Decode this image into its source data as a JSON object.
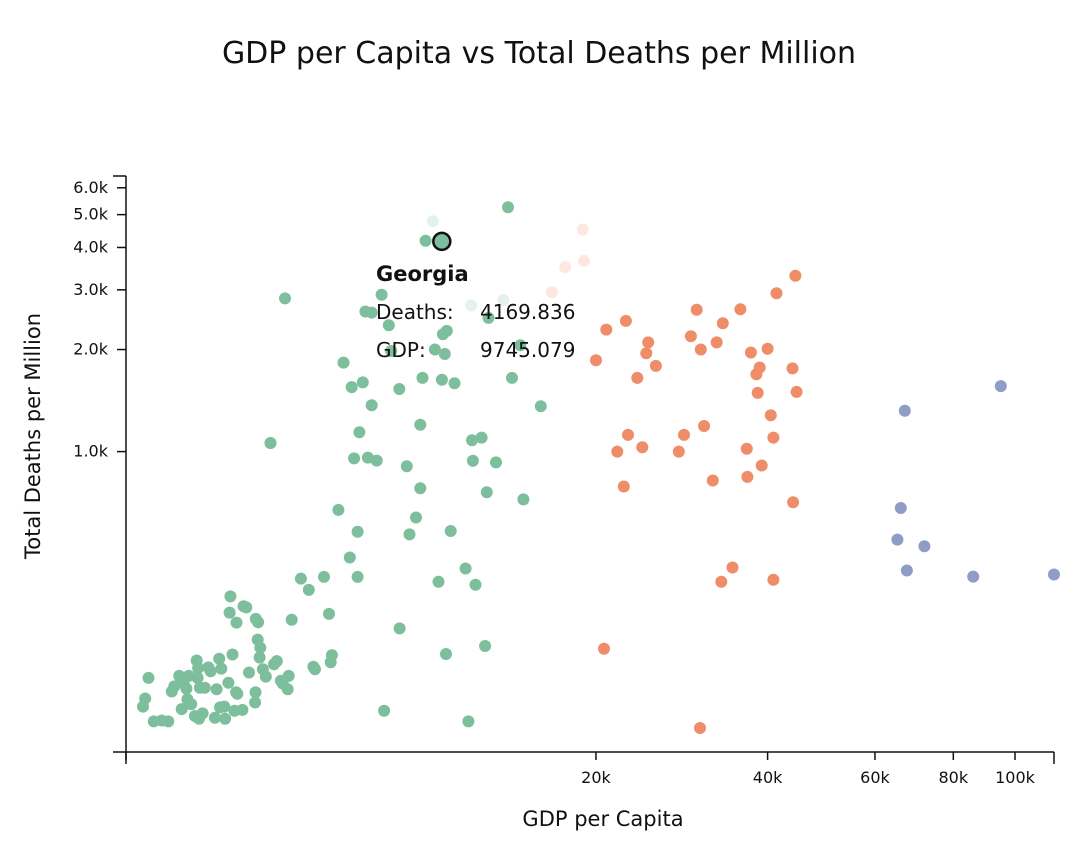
{
  "chart_data": {
    "type": "scatter",
    "title": "GDP per Capita vs Total Deaths per Million",
    "xlabel": "GDP per Capita",
    "ylabel": "Total Deaths per Million",
    "x_scale": "symlog",
    "y_scale": "log",
    "xlim": [
      0,
      115000
    ],
    "ylim": [
      130,
      6500
    ],
    "x_ticks": [
      0,
      20000,
      40000,
      60000,
      80000,
      100000
    ],
    "x_tick_labels": [
      "",
      "20k",
      "40k",
      "60k",
      "80k",
      "100k"
    ],
    "y_ticks": [
      1000,
      2000,
      3000,
      4000,
      5000,
      6000
    ],
    "y_tick_labels": [
      "1.0k",
      "2.0k",
      "3.0k",
      "4.0k",
      "5.0k",
      "6.0k"
    ],
    "colors": {
      "low": "#7dbf9c",
      "mid": "#ee8d68",
      "high": "#8f9cc6"
    },
    "series": [
      {
        "color_key": "low",
        "points": [
          [
            300,
            177
          ],
          [
            340,
            187
          ],
          [
            400,
            215
          ],
          [
            500,
            160
          ],
          [
            650,
            161
          ],
          [
            780,
            160
          ],
          [
            850,
            196
          ],
          [
            900,
            203
          ],
          [
            1000,
            218
          ],
          [
            1050,
            174
          ],
          [
            1090,
            208
          ],
          [
            1150,
            200
          ],
          [
            1170,
            186
          ],
          [
            1200,
            218
          ],
          [
            1250,
            180
          ],
          [
            1330,
            166
          ],
          [
            1370,
            242
          ],
          [
            1390,
            215
          ],
          [
            1400,
            230
          ],
          [
            1420,
            163
          ],
          [
            1440,
            201
          ],
          [
            1500,
            169
          ],
          [
            1550,
            201
          ],
          [
            1630,
            231
          ],
          [
            1680,
            225
          ],
          [
            1780,
            164
          ],
          [
            1820,
            199
          ],
          [
            1880,
            245
          ],
          [
            1900,
            176
          ],
          [
            1930,
            229
          ],
          [
            2000,
            177
          ],
          [
            2020,
            163
          ],
          [
            2100,
            208
          ],
          [
            2130,
            335
          ],
          [
            2150,
            374
          ],
          [
            2200,
            252
          ],
          [
            2250,
            172
          ],
          [
            2290,
            195
          ],
          [
            2300,
            313
          ],
          [
            2320,
            193
          ],
          [
            2450,
            173
          ],
          [
            2480,
            350
          ],
          [
            2550,
            347
          ],
          [
            2620,
            223
          ],
          [
            2780,
            182
          ],
          [
            2790,
            195
          ],
          [
            2800,
            321
          ],
          [
            2850,
            279
          ],
          [
            2860,
            314
          ],
          [
            2900,
            247
          ],
          [
            2920,
            264
          ],
          [
            2990,
            228
          ],
          [
            3070,
            217
          ],
          [
            3200,
            1060
          ],
          [
            3200,
            1060
          ],
          [
            3300,
            236
          ],
          [
            3380,
            241
          ],
          [
            3500,
            211
          ],
          [
            3550,
            207
          ],
          [
            3620,
            2830
          ],
          [
            3700,
            199
          ],
          [
            3730,
            218
          ],
          [
            3820,
            319
          ],
          [
            4100,
            422
          ],
          [
            4350,
            391
          ],
          [
            4500,
            232
          ],
          [
            4550,
            228
          ],
          [
            4850,
            427
          ],
          [
            5020,
            332
          ],
          [
            5080,
            239
          ],
          [
            5120,
            251
          ],
          [
            5350,
            673
          ],
          [
            5530,
            1830
          ],
          [
            5760,
            487
          ],
          [
            5830,
            1550
          ],
          [
            5920,
            955
          ],
          [
            6050,
            580
          ],
          [
            6050,
            427
          ],
          [
            6120,
            1140
          ],
          [
            6250,
            1600
          ],
          [
            6350,
            2590
          ],
          [
            6450,
            960
          ],
          [
            6600,
            1370
          ],
          [
            6600,
            2570
          ],
          [
            6800,
            941
          ],
          [
            7000,
            2900
          ],
          [
            7100,
            172
          ],
          [
            7300,
            2360
          ],
          [
            7400,
            1980
          ],
          [
            7750,
            1530
          ],
          [
            7760,
            301
          ],
          [
            8080,
            905
          ],
          [
            8200,
            570
          ],
          [
            8500,
            639
          ],
          [
            8700,
            1200
          ],
          [
            8700,
            780
          ],
          [
            8800,
            1650
          ],
          [
            8950,
            4190
          ],
          [
            9400,
            2000
          ],
          [
            9580,
            413
          ],
          [
            9750,
            1630
          ],
          [
            9800,
            2220
          ],
          [
            9900,
            1940
          ],
          [
            9960,
            253
          ],
          [
            10000,
            2270
          ],
          [
            10200,
            583
          ],
          [
            10400,
            1590
          ],
          [
            11000,
            452
          ],
          [
            11150,
            160
          ],
          [
            11350,
            1080
          ],
          [
            11400,
            940
          ],
          [
            11550,
            405
          ],
          [
            11900,
            1100
          ],
          [
            12100,
            267
          ],
          [
            12200,
            759
          ],
          [
            12300,
            2480
          ],
          [
            12750,
            929
          ],
          [
            13500,
            5260
          ],
          [
            13750,
            1650
          ],
          [
            14300,
            2060
          ],
          [
            14500,
            723
          ],
          [
            15700,
            1360
          ]
        ]
      },
      {
        "color_key": "mid",
        "points": [
          [
            20000,
            1860
          ],
          [
            20700,
            262
          ],
          [
            20900,
            2290
          ],
          [
            21900,
            1000
          ],
          [
            22500,
            789
          ],
          [
            22700,
            2430
          ],
          [
            22900,
            1120
          ],
          [
            23800,
            1650
          ],
          [
            24300,
            1030
          ],
          [
            24700,
            1950
          ],
          [
            24900,
            2100
          ],
          [
            25700,
            1790
          ],
          [
            28200,
            1000
          ],
          [
            28800,
            1120
          ],
          [
            29600,
            2190
          ],
          [
            30300,
            2620
          ],
          [
            30700,
            153
          ],
          [
            30800,
            2000
          ],
          [
            31200,
            1190
          ],
          [
            32300,
            822
          ],
          [
            32800,
            2100
          ],
          [
            33400,
            413
          ],
          [
            33600,
            2390
          ],
          [
            34900,
            455
          ],
          [
            36000,
            2630
          ],
          [
            36900,
            1020
          ],
          [
            37000,
            842
          ],
          [
            37500,
            1960
          ],
          [
            38300,
            1690
          ],
          [
            38500,
            1490
          ],
          [
            38800,
            1770
          ],
          [
            39100,
            910
          ],
          [
            40000,
            2010
          ],
          [
            40500,
            1280
          ],
          [
            40900,
            1100
          ],
          [
            40900,
            419
          ],
          [
            41400,
            2930
          ],
          [
            44000,
            1760
          ],
          [
            44100,
            709
          ],
          [
            44500,
            3300
          ],
          [
            44700,
            1500
          ]
        ]
      },
      {
        "color_key": "high",
        "points": [
          [
            65200,
            550
          ],
          [
            66000,
            682
          ],
          [
            67000,
            1320
          ],
          [
            67500,
            446
          ],
          [
            72000,
            526
          ],
          [
            86000,
            428
          ],
          [
            95000,
            1560
          ],
          [
            115000,
            434
          ]
        ]
      },
      {
        "color_key": "mid",
        "points": [
          [
            18900,
            4520
          ],
          [
            16500,
            2950
          ],
          [
            17500,
            3500
          ],
          [
            19000,
            3650
          ]
        ],
        "faded": true
      },
      {
        "color_key": "low",
        "points": [
          [
            9300,
            4780
          ],
          [
            11300,
            2700
          ],
          [
            13200,
            2800
          ]
        ],
        "faded": true
      }
    ],
    "highlight": {
      "name": "Georgia",
      "deaths_label": "Deaths:",
      "deaths": "4169.836",
      "gdp_label": "GDP:",
      "gdp": "9745.079",
      "color_key": "low"
    }
  }
}
